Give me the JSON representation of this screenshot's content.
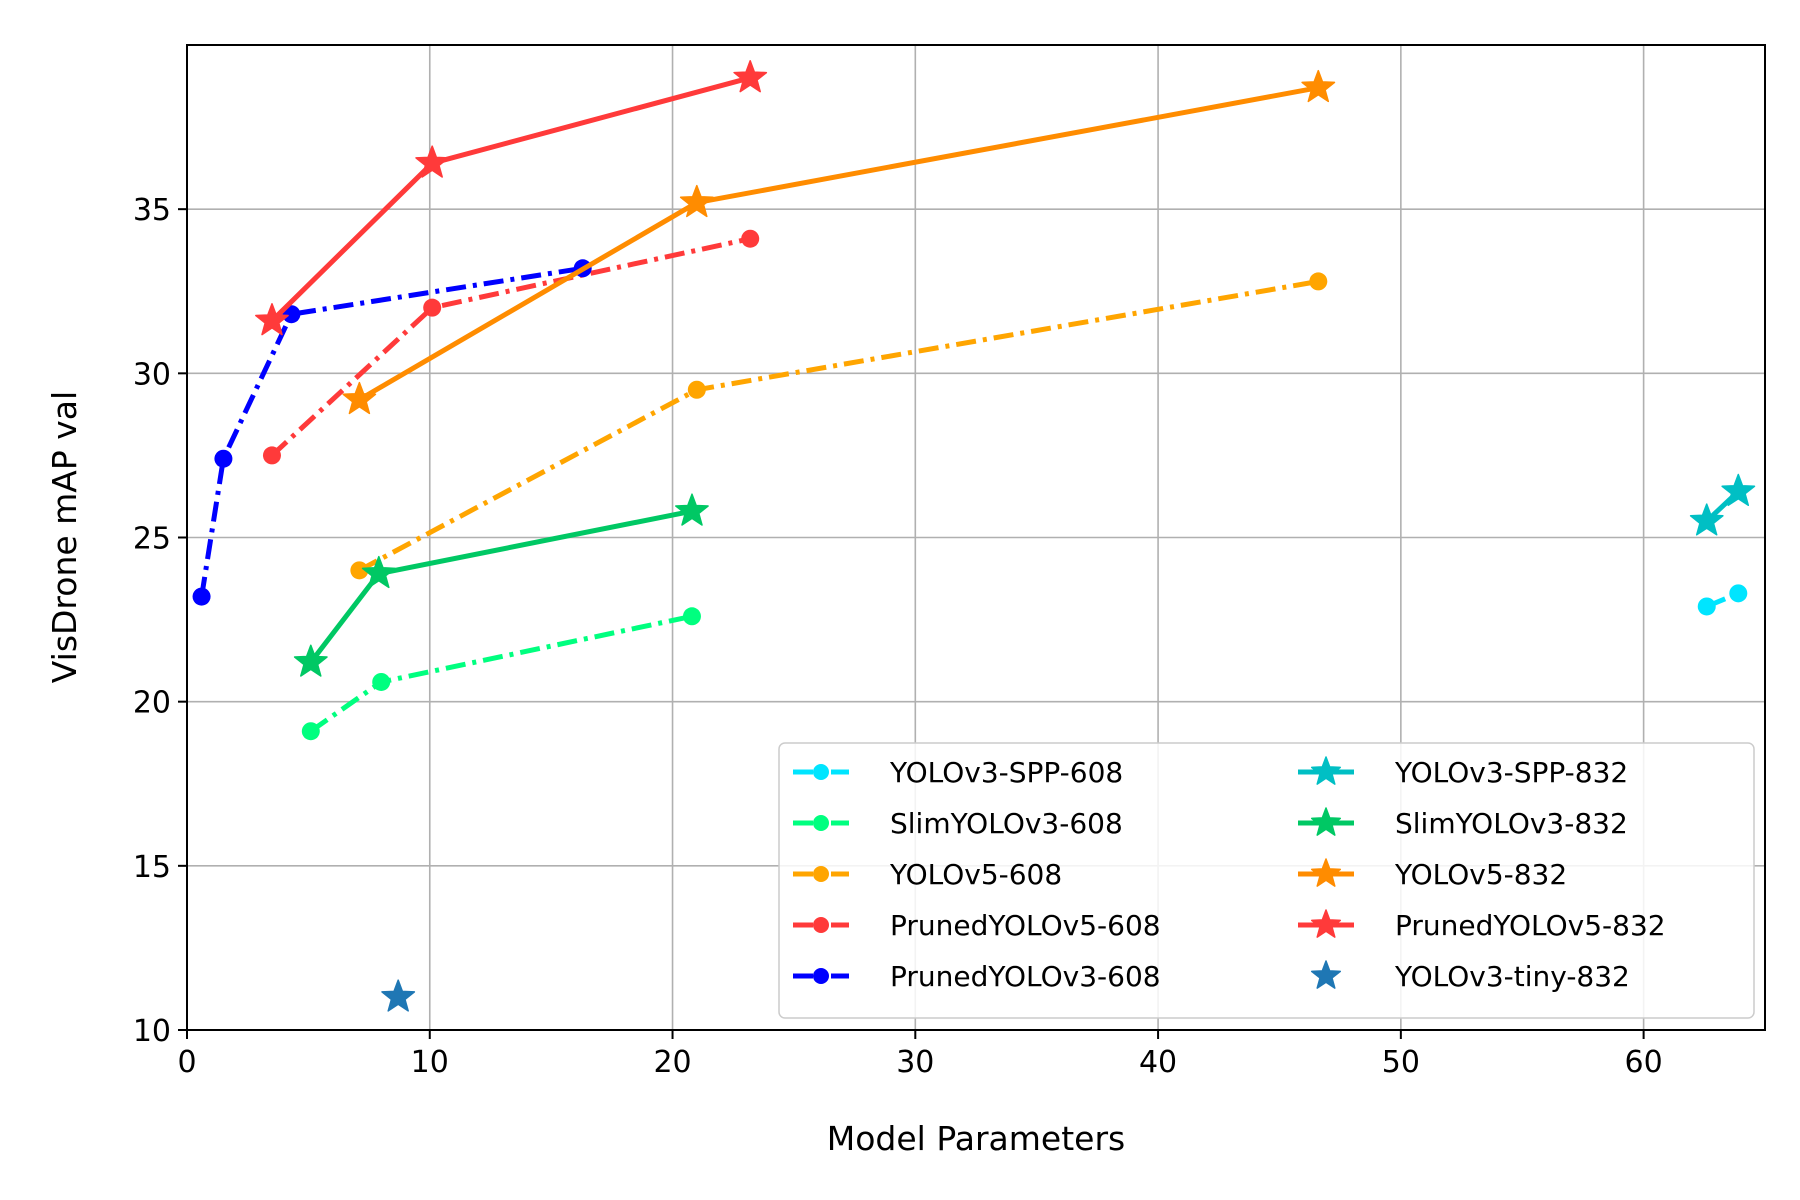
{
  "chart_data": {
    "type": "line",
    "xlabel": "Model Parameters",
    "ylabel": "VisDrone mAP val",
    "xlim": [
      0,
      65
    ],
    "ylim": [
      10,
      40
    ],
    "xticks": [
      0,
      10,
      20,
      30,
      40,
      50,
      60
    ],
    "yticks": [
      10,
      15,
      20,
      25,
      30,
      35
    ],
    "grid": true,
    "legend_position": "lower-right",
    "legend_columns": 2,
    "series": [
      {
        "name": "YOLOv3-SPP-608",
        "color": "#00e5ff",
        "linestyle": "dashdot",
        "marker": "circle",
        "points": [
          [
            62.6,
            22.9
          ],
          [
            63.9,
            23.3
          ]
        ]
      },
      {
        "name": "SlimYOLOv3-608",
        "color": "#00ff7f",
        "linestyle": "dashdot",
        "marker": "circle",
        "points": [
          [
            5.1,
            19.1
          ],
          [
            8.0,
            20.6
          ],
          [
            20.8,
            22.6
          ]
        ]
      },
      {
        "name": "YOLOv5-608",
        "color": "#ffa500",
        "linestyle": "dashdot",
        "marker": "circle",
        "points": [
          [
            7.1,
            24.0
          ],
          [
            21.0,
            29.5
          ],
          [
            46.6,
            32.8
          ]
        ]
      },
      {
        "name": "PrunedYOLOv5-608",
        "color": "#ff3a3a",
        "linestyle": "dashdot",
        "marker": "circle",
        "points": [
          [
            3.5,
            27.5
          ],
          [
            10.1,
            32.0
          ],
          [
            23.2,
            34.1
          ]
        ]
      },
      {
        "name": "PrunedYOLOv3-608",
        "color": "#0000ff",
        "linestyle": "dashdot",
        "marker": "circle",
        "points": [
          [
            0.6,
            23.2
          ],
          [
            1.5,
            27.4
          ],
          [
            4.3,
            31.8
          ],
          [
            16.3,
            33.2
          ]
        ]
      },
      {
        "name": "YOLOv3-SPP-832",
        "color": "#00bfc4",
        "linestyle": "solid",
        "marker": "star",
        "points": [
          [
            62.6,
            25.5
          ],
          [
            63.9,
            26.4
          ]
        ]
      },
      {
        "name": "SlimYOLOv3-832",
        "color": "#00c864",
        "linestyle": "solid",
        "marker": "star",
        "points": [
          [
            5.1,
            21.2
          ],
          [
            7.9,
            23.9
          ],
          [
            20.8,
            25.8
          ]
        ]
      },
      {
        "name": "YOLOv5-832",
        "color": "#ff8c00",
        "linestyle": "solid",
        "marker": "star",
        "points": [
          [
            7.1,
            29.2
          ],
          [
            21.0,
            35.2
          ],
          [
            46.6,
            38.7
          ]
        ]
      },
      {
        "name": "PrunedYOLOv5-832",
        "color": "#ff3a3a",
        "linestyle": "solid",
        "marker": "star",
        "points": [
          [
            3.5,
            31.6
          ],
          [
            10.1,
            36.4
          ],
          [
            23.2,
            39.0
          ]
        ]
      },
      {
        "name": "YOLOv3-tiny-832",
        "color": "#1f77b4",
        "linestyle": "none",
        "marker": "star",
        "points": [
          [
            8.7,
            11.0
          ]
        ]
      }
    ]
  }
}
